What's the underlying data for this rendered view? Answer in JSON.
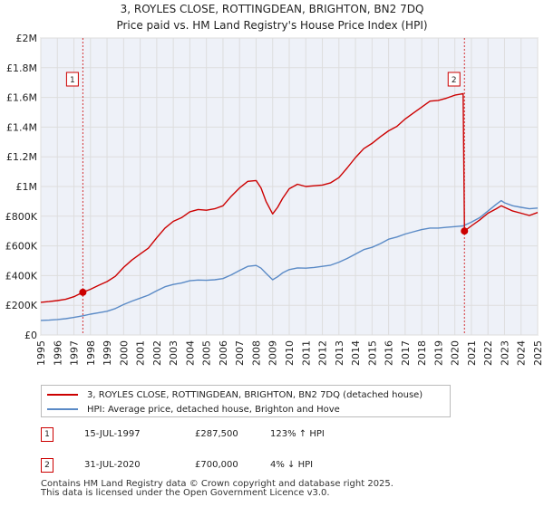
{
  "chart_data": {
    "type": "line",
    "title": "3, ROYLES CLOSE, ROTTINGDEAN, BRIGHTON, BN2 7DQ",
    "subtitle": "Price paid vs. HM Land Registry's House Price Index (HPI)",
    "xlabel": "",
    "ylabel": "",
    "xlim": [
      1995,
      2025
    ],
    "ylim": [
      0,
      2000000
    ],
    "x_ticks": [
      "1995",
      "1996",
      "1997",
      "1998",
      "1999",
      "2000",
      "2001",
      "2002",
      "2003",
      "2004",
      "2005",
      "2006",
      "2007",
      "2008",
      "2009",
      "2010",
      "2011",
      "2012",
      "2013",
      "2014",
      "2015",
      "2016",
      "2017",
      "2018",
      "2019",
      "2020",
      "2021",
      "2022",
      "2023",
      "2024",
      "2025"
    ],
    "y_ticks": [
      {
        "value": 0,
        "label": "£0"
      },
      {
        "value": 200000,
        "label": "£200K"
      },
      {
        "value": 400000,
        "label": "£400K"
      },
      {
        "value": 600000,
        "label": "£600K"
      },
      {
        "value": 800000,
        "label": "£800K"
      },
      {
        "value": 1000000,
        "label": "£1M"
      },
      {
        "value": 1200000,
        "label": "£1.2M"
      },
      {
        "value": 1400000,
        "label": "£1.4M"
      },
      {
        "value": 1600000,
        "label": "£1.6M"
      },
      {
        "value": 1800000,
        "label": "£1.8M"
      },
      {
        "value": 2000000,
        "label": "£2M"
      }
    ],
    "grid": true,
    "series": [
      {
        "name": "3, ROYLES CLOSE, ROTTINGDEAN, BRIGHTON, BN2 7DQ (detached house)",
        "color": "#cc0000",
        "x": [
          1995.0,
          1995.5,
          1996.0,
          1996.5,
          1997.0,
          1997.54,
          1998.0,
          1998.5,
          1999.0,
          1999.5,
          2000.0,
          2000.5,
          2001.0,
          2001.5,
          2002.0,
          2002.5,
          2003.0,
          2003.5,
          2004.0,
          2004.5,
          2005.0,
          2005.5,
          2006.0,
          2006.5,
          2007.0,
          2007.5,
          2008.0,
          2008.3,
          2008.6,
          2009.0,
          2009.3,
          2009.6,
          2010.0,
          2010.5,
          2011.0,
          2011.5,
          2012.0,
          2012.5,
          2013.0,
          2013.5,
          2014.0,
          2014.5,
          2015.0,
          2015.5,
          2016.0,
          2016.5,
          2017.0,
          2017.5,
          2018.0,
          2018.5,
          2019.0,
          2019.5,
          2020.0,
          2020.5,
          2020.58,
          2021.0,
          2021.5,
          2022.0,
          2022.5,
          2022.8,
          2023.0,
          2023.5,
          2024.0,
          2024.5,
          2025.0
        ],
        "y": [
          220000,
          225000,
          232000,
          240000,
          258000,
          287500,
          308000,
          335000,
          360000,
          395000,
          455000,
          505000,
          545000,
          585000,
          655000,
          720000,
          765000,
          790000,
          830000,
          845000,
          840000,
          850000,
          870000,
          935000,
          990000,
          1035000,
          1040000,
          990000,
          900000,
          815000,
          860000,
          920000,
          985000,
          1015000,
          1000000,
          1005000,
          1010000,
          1025000,
          1060000,
          1125000,
          1195000,
          1255000,
          1290000,
          1335000,
          1375000,
          1405000,
          1455000,
          1495000,
          1535000,
          1575000,
          1580000,
          1595000,
          1615000,
          1625000,
          700000,
          735000,
          775000,
          820000,
          850000,
          870000,
          860000,
          835000,
          820000,
          805000,
          825000
        ]
      },
      {
        "name": "HPI: Average price, detached house, Brighton and Hove",
        "color": "#5a8ac6",
        "x": [
          1995.0,
          1995.5,
          1996.0,
          1996.5,
          1997.0,
          1997.54,
          1998.0,
          1998.5,
          1999.0,
          1999.5,
          2000.0,
          2000.5,
          2001.0,
          2001.5,
          2002.0,
          2002.5,
          2003.0,
          2003.5,
          2004.0,
          2004.5,
          2005.0,
          2005.5,
          2006.0,
          2006.5,
          2007.0,
          2007.5,
          2008.0,
          2008.3,
          2008.6,
          2009.0,
          2009.3,
          2009.6,
          2010.0,
          2010.5,
          2011.0,
          2011.5,
          2012.0,
          2012.5,
          2013.0,
          2013.5,
          2014.0,
          2014.5,
          2015.0,
          2015.5,
          2016.0,
          2016.5,
          2017.0,
          2017.5,
          2018.0,
          2018.5,
          2019.0,
          2019.5,
          2020.0,
          2020.5,
          2021.0,
          2021.5,
          2022.0,
          2022.5,
          2022.8,
          2023.0,
          2023.5,
          2024.0,
          2024.5,
          2025.0
        ],
        "y": [
          98000,
          100000,
          104000,
          110000,
          118000,
          129000,
          140000,
          150000,
          160000,
          178000,
          205000,
          228000,
          248000,
          268000,
          298000,
          325000,
          340000,
          350000,
          365000,
          370000,
          368000,
          372000,
          380000,
          405000,
          435000,
          462000,
          468000,
          450000,
          415000,
          372000,
          392000,
          418000,
          440000,
          452000,
          450000,
          455000,
          462000,
          470000,
          490000,
          515000,
          545000,
          575000,
          590000,
          615000,
          645000,
          660000,
          680000,
          695000,
          710000,
          720000,
          720000,
          725000,
          730000,
          735000,
          760000,
          790000,
          835000,
          880000,
          905000,
          890000,
          870000,
          860000,
          850000,
          855000
        ]
      }
    ],
    "annotations": [
      {
        "label": "1",
        "x": 1997.54,
        "y": 287500
      },
      {
        "label": "2",
        "x": 2020.58,
        "y": 700000
      }
    ],
    "marker_color": "#cc0000",
    "grid_color": "#dddddd",
    "plot_background": "#eef1f8"
  },
  "legend": {
    "items": [
      {
        "label": "3, ROYLES CLOSE, ROTTINGDEAN, BRIGHTON, BN2 7DQ (detached house)",
        "color": "#cc0000"
      },
      {
        "label": "HPI: Average price, detached house, Brighton and Hove",
        "color": "#5a8ac6"
      }
    ]
  },
  "sales": [
    {
      "num": "1",
      "date": "15-JUL-1997",
      "price": "£287,500",
      "hpi": "123% ↑ HPI"
    },
    {
      "num": "2",
      "date": "31-JUL-2020",
      "price": "£700,000",
      "hpi": "4% ↓ HPI"
    }
  ],
  "footer": {
    "line1": "Contains HM Land Registry data © Crown copyright and database right 2025.",
    "line2": "This data is licensed under the Open Government Licence v3.0."
  }
}
